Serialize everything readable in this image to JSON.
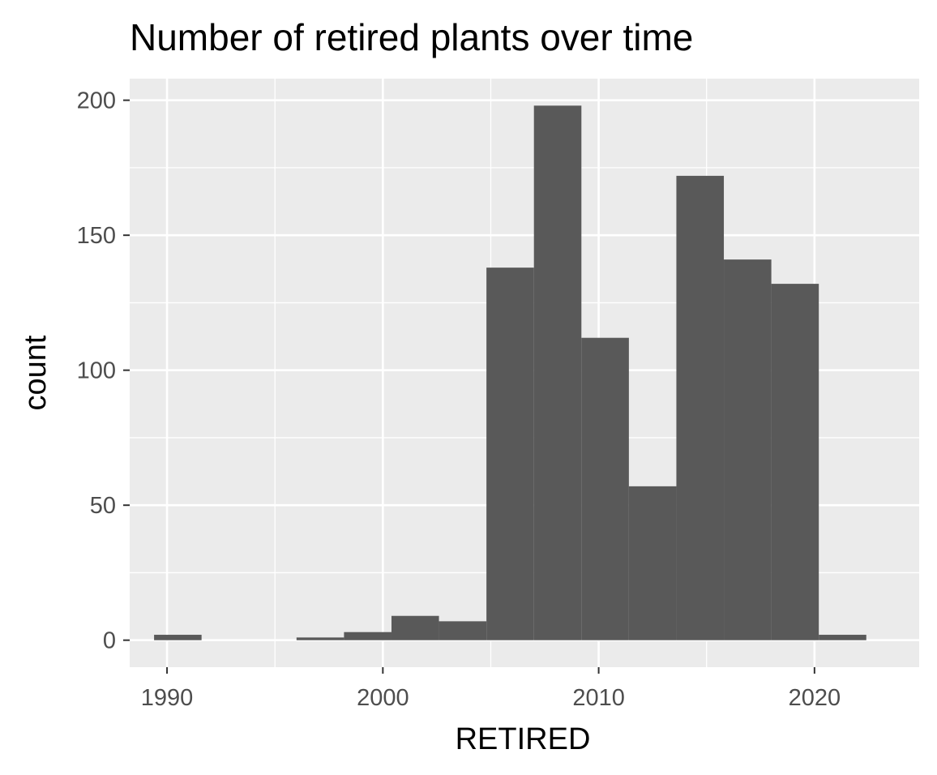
{
  "chart_data": {
    "type": "bar",
    "title": "Number of retired plants over time",
    "xlabel": "RETIRED",
    "ylabel": "count",
    "xlim": [
      1988.27,
      2024.85
    ],
    "ylim": [
      -10,
      208
    ],
    "x_ticks": [
      1990,
      2000,
      2010,
      2020
    ],
    "y_ticks": [
      0,
      50,
      100,
      150,
      200
    ],
    "grid": true,
    "legend": "none",
    "bins": [
      {
        "x0": 1989.4,
        "x1": 1991.6,
        "count": 2
      },
      {
        "x0": 1996.0,
        "x1": 1998.2,
        "count": 1
      },
      {
        "x0": 1998.2,
        "x1": 2000.4,
        "count": 3
      },
      {
        "x0": 2000.4,
        "x1": 2002.6,
        "count": 9
      },
      {
        "x0": 2002.6,
        "x1": 2004.8,
        "count": 7
      },
      {
        "x0": 2004.8,
        "x1": 2007.0,
        "count": 138
      },
      {
        "x0": 2007.0,
        "x1": 2009.2,
        "count": 198
      },
      {
        "x0": 2009.2,
        "x1": 2011.4,
        "count": 112
      },
      {
        "x0": 2011.4,
        "x1": 2013.6,
        "count": 57
      },
      {
        "x0": 2013.6,
        "x1": 2015.8,
        "count": 172
      },
      {
        "x0": 2015.8,
        "x1": 2018.0,
        "count": 141
      },
      {
        "x0": 2018.0,
        "x1": 2020.2,
        "count": 132
      },
      {
        "x0": 2020.2,
        "x1": 2022.4,
        "count": 2
      }
    ]
  },
  "colors": {
    "panel_bg": "#ebebeb",
    "grid": "#ffffff",
    "bar_fill": "#595959",
    "tick_text": "#4d4d4d",
    "tick_mark": "#333333"
  }
}
